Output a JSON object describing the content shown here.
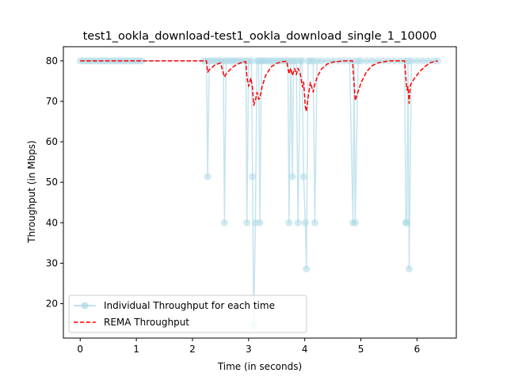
{
  "chart_data": {
    "type": "line",
    "title": "test1_ookla_download-test1_ookla_download_single_1_10000",
    "xlabel": "Time (in seconds)",
    "ylabel": "Throughput (in Mbps)",
    "xlim": [
      -0.3,
      6.7
    ],
    "ylim": [
      11.5,
      83.5
    ],
    "xticks": [
      0,
      1,
      2,
      3,
      4,
      5,
      6
    ],
    "yticks": [
      20,
      30,
      40,
      50,
      60,
      70,
      80
    ],
    "grid": false,
    "legend_position": "lower-left",
    "series": [
      {
        "name": "Individual Throughput for each time",
        "style": "line-with-circle-markers",
        "color": "#add8e6",
        "x": [
          0.0,
          0.05,
          0.1,
          0.15,
          0.2,
          0.25,
          0.3,
          0.35,
          0.4,
          0.45,
          0.5,
          0.55,
          0.6,
          0.65,
          0.7,
          0.75,
          0.8,
          0.85,
          0.9,
          0.95,
          1.0,
          1.05,
          1.1,
          2.2,
          2.25,
          2.27,
          2.3,
          2.35,
          2.4,
          2.45,
          2.5,
          2.55,
          2.57,
          2.6,
          2.65,
          2.7,
          2.75,
          2.8,
          2.85,
          2.9,
          2.95,
          2.97,
          3.0,
          3.05,
          3.07,
          3.09,
          3.12,
          3.15,
          3.18,
          3.2,
          3.23,
          3.26,
          3.3,
          3.35,
          3.4,
          3.45,
          3.5,
          3.55,
          3.6,
          3.65,
          3.7,
          3.72,
          3.75,
          3.78,
          3.8,
          3.85,
          3.88,
          3.92,
          3.95,
          3.98,
          4.01,
          4.03,
          4.06,
          4.1,
          4.15,
          4.18,
          4.22,
          4.3,
          4.4,
          4.5,
          4.6,
          4.7,
          4.8,
          4.86,
          4.88,
          4.9,
          4.95,
          5.0,
          5.1,
          5.2,
          5.3,
          5.4,
          5.5,
          5.6,
          5.7,
          5.78,
          5.8,
          5.82,
          5.84,
          5.86,
          5.9,
          6.0,
          6.1,
          6.2,
          6.3,
          6.37
        ],
        "y": [
          80,
          80,
          80,
          80,
          80,
          80,
          80,
          80,
          80,
          80,
          80,
          80,
          80,
          80,
          80,
          80,
          80,
          80,
          80,
          80,
          80,
          80,
          80,
          80,
          80,
          51.4,
          80,
          80,
          80,
          80,
          80,
          80,
          40,
          80,
          80,
          80,
          80,
          80,
          80,
          80,
          80,
          40,
          80,
          80,
          51.4,
          14.5,
          40,
          80,
          80,
          40,
          80,
          80,
          80,
          80,
          80,
          80,
          80,
          80,
          80,
          80,
          80,
          40,
          80,
          51.4,
          80,
          80,
          40,
          80,
          80,
          51.4,
          40,
          28.6,
          80,
          80,
          80,
          40,
          80,
          80,
          80,
          80,
          80,
          80,
          80,
          40,
          80,
          40,
          80,
          80,
          80,
          80,
          80,
          80,
          80,
          80,
          80,
          80,
          40,
          40,
          80,
          28.6,
          80,
          80,
          80,
          80,
          80,
          80
        ]
      },
      {
        "name": "REMA Throughput",
        "style": "dashed-line",
        "color": "#ff0000",
        "x": [
          0.0,
          0.5,
          1.0,
          1.5,
          2.0,
          2.2,
          2.25,
          2.27,
          2.3,
          2.4,
          2.5,
          2.57,
          2.6,
          2.7,
          2.8,
          2.9,
          2.95,
          2.97,
          3.0,
          3.04,
          3.07,
          3.09,
          3.12,
          3.15,
          3.18,
          3.2,
          3.24,
          3.3,
          3.4,
          3.5,
          3.6,
          3.68,
          3.72,
          3.75,
          3.78,
          3.82,
          3.85,
          3.88,
          3.92,
          3.96,
          3.98,
          4.01,
          4.03,
          4.06,
          4.1,
          4.15,
          4.18,
          4.22,
          4.3,
          4.4,
          4.5,
          4.7,
          4.85,
          4.88,
          4.9,
          5.0,
          5.1,
          5.2,
          5.3,
          5.5,
          5.78,
          5.8,
          5.82,
          5.84,
          5.86,
          5.88,
          5.95,
          6.05,
          6.15,
          6.25,
          6.37
        ],
        "y": [
          80,
          80,
          80,
          80,
          80,
          80,
          80,
          77.2,
          77.8,
          79,
          79.5,
          76,
          76.8,
          78.3,
          79.2,
          79.7,
          79.8,
          76,
          73.7,
          75.8,
          73.2,
          69.0,
          70.2,
          72.2,
          70.5,
          70.8,
          73.6,
          76.3,
          78.5,
          79.4,
          79.8,
          79.9,
          76.8,
          78.2,
          76.4,
          78.1,
          76.6,
          78.2,
          76.8,
          73.5,
          74.8,
          68.7,
          67.5,
          71.0,
          74.7,
          72.3,
          74.2,
          76.0,
          78.0,
          79.2,
          79.7,
          80,
          80,
          74.2,
          70.2,
          74.5,
          77.3,
          78.8,
          79.5,
          80,
          80,
          76.0,
          72.8,
          73.6,
          69.5,
          74.0,
          75.6,
          77.4,
          78.7,
          79.6,
          80
        ]
      }
    ]
  }
}
